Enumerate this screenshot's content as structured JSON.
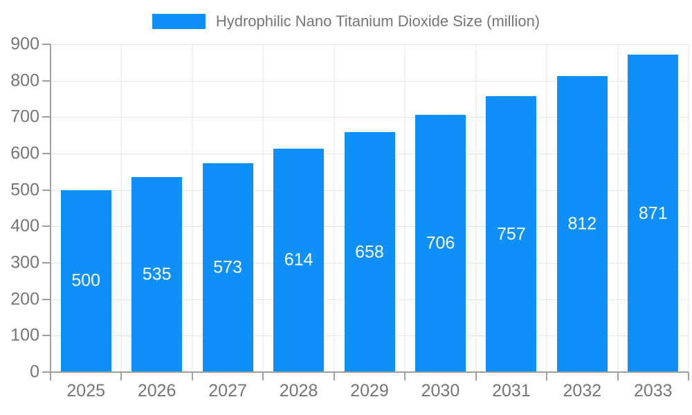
{
  "chart_data": {
    "type": "bar",
    "title": "Hydrophilic Nano Titanium Dioxide Size (million)",
    "legend": {
      "label": "Hydrophilic Nano Titanium Dioxide Size (million)",
      "position": "top-center"
    },
    "categories": [
      "2025",
      "2026",
      "2027",
      "2028",
      "2029",
      "2030",
      "2031",
      "2032",
      "2033"
    ],
    "series": [
      {
        "name": "Hydrophilic Nano Titanium Dioxide Size (million)",
        "values": [
          500,
          535,
          573,
          614,
          658,
          706,
          757,
          812,
          871
        ]
      }
    ],
    "xlabel": "",
    "ylabel": "",
    "ylim": [
      0,
      900
    ],
    "yticks": [
      0,
      100,
      200,
      300,
      400,
      500,
      600,
      700,
      800,
      900
    ],
    "grid": true,
    "value_labels_inside_bars": true,
    "colors": {
      "bar": "#0e90f8",
      "value_label": "#ffffff",
      "axis": "#9e9e9e",
      "grid": "#e3e3e3",
      "tick_label": "#757575",
      "background": "#ffffff"
    }
  }
}
